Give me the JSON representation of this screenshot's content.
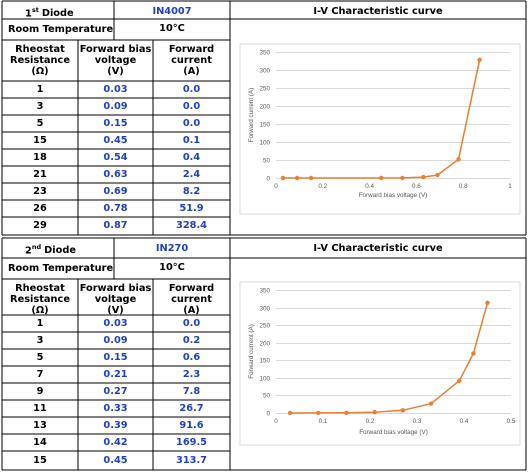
{
  "sections": [
    {
      "diode_prefix": "1",
      "diode_suffix": "st",
      "diode_word": "Diode",
      "diode_model": "IN4007",
      "chart_heading": "I-V Characteristic curve",
      "room_temp_label": "Room Temperature",
      "room_temp_value": "10°C",
      "col_headers": [
        "Rheostat\nResistance\n(Ω)",
        "Forward bias\nvoltage\n(V)",
        "Forward\ncurrent\n(A)"
      ],
      "rows": [
        [
          "1",
          "0.03",
          "0.0"
        ],
        [
          "3",
          "0.09",
          "0.0"
        ],
        [
          "5",
          "0.15",
          "0.0"
        ],
        [
          "15",
          "0.45",
          "0.1"
        ],
        [
          "18",
          "0.54",
          "0.4"
        ],
        [
          "21",
          "0.63",
          "2.4"
        ],
        [
          "23",
          "0.69",
          "8.2"
        ],
        [
          "26",
          "0.78",
          "51.9"
        ],
        [
          "29",
          "0.87",
          "328.4"
        ]
      ]
    },
    {
      "diode_prefix": "2",
      "diode_suffix": "nd",
      "diode_word": "Diode",
      "diode_model": "IN270",
      "chart_heading": "I-V Characteristic curve",
      "room_temp_label": "Room Temperature",
      "room_temp_value": "10°C",
      "col_headers": [
        "Rheostat\nResistance\n(Ω)",
        "Forward bias\nvoltage\n(V)",
        "Forward\ncurrent\n(A)"
      ],
      "rows": [
        [
          "1",
          "0.03",
          "0.0"
        ],
        [
          "3",
          "0.09",
          "0.2"
        ],
        [
          "5",
          "0.15",
          "0.6"
        ],
        [
          "7",
          "0.21",
          "2.3"
        ],
        [
          "9",
          "0.27",
          "7.8"
        ],
        [
          "11",
          "0.33",
          "26.7"
        ],
        [
          "13",
          "0.39",
          "91.6"
        ],
        [
          "14",
          "0.42",
          "169.5"
        ],
        [
          "15",
          "0.45",
          "313.7"
        ]
      ]
    }
  ],
  "chart_data": [
    {
      "type": "line",
      "title": "",
      "xlabel": "Forward bias voltage (V)",
      "ylabel": "Forward current (A)",
      "xlim": [
        0,
        1
      ],
      "ylim": [
        0,
        350
      ],
      "xticks": [
        "0",
        "0.2",
        "0.4",
        "0.6",
        "0.8",
        "1"
      ],
      "yticks": [
        "0",
        "50",
        "100",
        "150",
        "200",
        "250",
        "300",
        "350"
      ],
      "grid": true,
      "series_color": "#ed7d31",
      "x": [
        0.03,
        0.09,
        0.15,
        0.45,
        0.54,
        0.63,
        0.69,
        0.78,
        0.87
      ],
      "y": [
        0.0,
        0.0,
        0.0,
        0.1,
        0.4,
        2.4,
        8.2,
        51.9,
        328.4
      ]
    },
    {
      "type": "line",
      "title": "",
      "xlabel": "Forward bias voltage (V)",
      "ylabel": "Forward current (A)",
      "xlim": [
        0,
        0.5
      ],
      "ylim": [
        0,
        350
      ],
      "xticks": [
        "0",
        "0.1",
        "0.2",
        "0.3",
        "0.4",
        "0.5"
      ],
      "yticks": [
        "0",
        "50",
        "100",
        "150",
        "200",
        "250",
        "300",
        "350"
      ],
      "grid": true,
      "series_color": "#ed7d31",
      "x": [
        0.03,
        0.09,
        0.15,
        0.21,
        0.27,
        0.33,
        0.39,
        0.42,
        0.45
      ],
      "y": [
        0.0,
        0.2,
        0.6,
        2.3,
        7.8,
        26.7,
        91.6,
        169.5,
        313.7
      ]
    }
  ]
}
